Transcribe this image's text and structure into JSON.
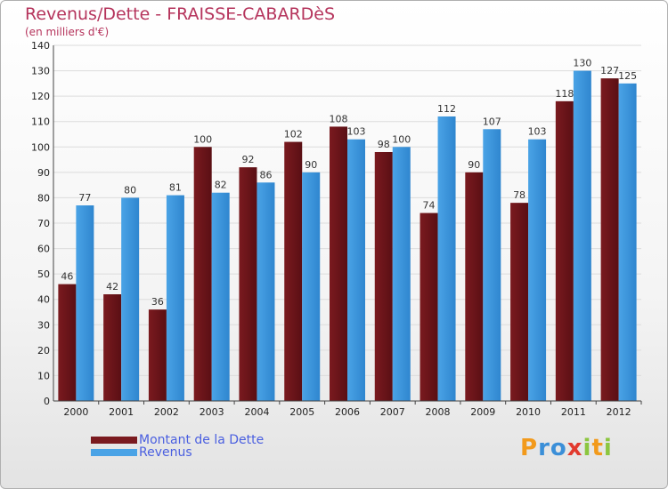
{
  "header": {
    "title": "Revenus/Dette - FRAISSE-CABARDèS",
    "subtitle": "(en milliers d'€)"
  },
  "chart_data": {
    "type": "bar",
    "categories": [
      "2000",
      "2001",
      "2002",
      "2003",
      "2004",
      "2005",
      "2006",
      "2007",
      "2008",
      "2009",
      "2010",
      "2011",
      "2012"
    ],
    "series": [
      {
        "name": "Montant de la Dette",
        "values": [
          46,
          42,
          36,
          100,
          92,
          102,
          108,
          98,
          74,
          90,
          78,
          118,
          127
        ],
        "color": "#7a1a1f"
      },
      {
        "name": "Revenus",
        "values": [
          77,
          80,
          81,
          82,
          86,
          90,
          103,
          100,
          112,
          107,
          103,
          130,
          125
        ],
        "color": "#4aa3e6"
      }
    ],
    "ylim": [
      0,
      140
    ],
    "yticks": [
      0,
      10,
      20,
      30,
      40,
      50,
      60,
      70,
      80,
      90,
      100,
      110,
      120,
      130,
      140
    ],
    "grid": true,
    "legend_position": "bottom-left"
  },
  "legend": {
    "items": [
      {
        "label": "Montant de la Dette",
        "color": "#7a1a1f"
      },
      {
        "label": "Revenus",
        "color": "#4aa3e6"
      }
    ]
  },
  "logo": {
    "letters": [
      "P",
      "r",
      "o",
      "x",
      "i",
      "t",
      "i"
    ],
    "colors": [
      "#f29a1c",
      "#3b8fd8",
      "#3b8fd8",
      "#e23a2e",
      "#8cc63f",
      "#f29a1c",
      "#8cc63f"
    ]
  }
}
